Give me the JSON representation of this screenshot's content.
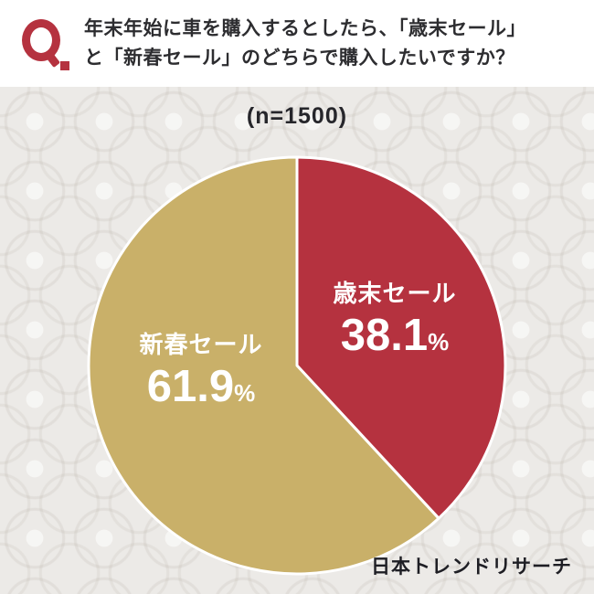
{
  "header": {
    "q_icon": "Q.",
    "question_line1": "年末年始に車を購入するとしたら、「歳末セール」",
    "question_line2": "と「新春セール」のどちらで購入したいですか？"
  },
  "sample_label": "(n=1500)",
  "footer": {
    "brand": "日本トレンドリサーチ"
  },
  "colors": {
    "red": "#b5323f",
    "gold": "#c9b069",
    "text": "#2f2f33",
    "background": "#eceae7"
  },
  "chart_data": {
    "type": "pie",
    "title": "年末年始に車を購入するとしたら、「歳末セール」と「新春セール」のどちらで購入したいですか？",
    "sample_label": "(n=1500)",
    "sample_size": 1500,
    "categories": [
      "歳末セール",
      "新春セール"
    ],
    "values": [
      38.1,
      61.9
    ],
    "unit": "%",
    "colors": [
      "#b5323f",
      "#c9b069"
    ],
    "start_angle": "top",
    "direction": "clockwise",
    "legend_position": "none",
    "labels_inside": true
  }
}
